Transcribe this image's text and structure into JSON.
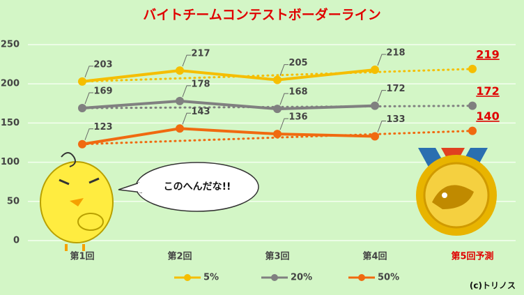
{
  "chart_data": {
    "type": "line",
    "title": "バイトチームコンテストボーダーライン",
    "categories": [
      "第1回",
      "第2回",
      "第3回",
      "第4回",
      "第5回予測"
    ],
    "series": [
      {
        "name": "5%",
        "color": "#f5be00",
        "values": [
          203,
          217,
          205,
          218,
          219
        ]
      },
      {
        "name": "20%",
        "color": "#808080",
        "values": [
          169,
          178,
          168,
          172,
          172
        ]
      },
      {
        "name": "50%",
        "color": "#f06a10",
        "values": [
          123,
          143,
          136,
          133,
          140
        ]
      }
    ],
    "ylim": [
      0,
      250
    ],
    "yticks": [
      0,
      50,
      100,
      150,
      200,
      250
    ],
    "grid": true,
    "forecast_color": "#e00000",
    "annotations": {
      "bubble": "このへんだな!!",
      "credit": "(c)トリノス"
    }
  }
}
